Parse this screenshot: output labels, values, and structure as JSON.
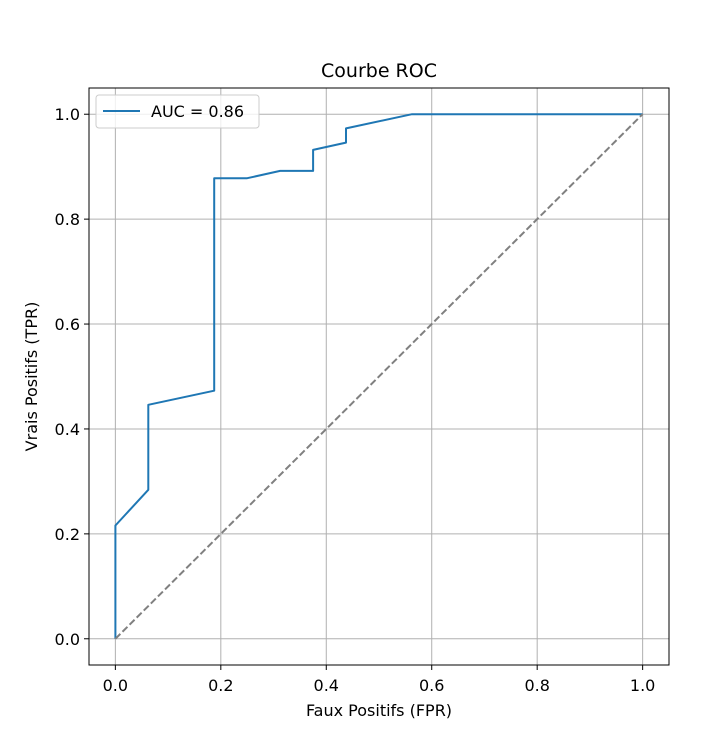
{
  "chart_data": {
    "type": "line",
    "title": "Courbe ROC",
    "xlabel": "Faux Positifs (FPR)",
    "ylabel": "Vrais Positifs (TPR)",
    "xlim": [
      -0.05,
      1.05
    ],
    "ylim": [
      -0.05,
      1.05
    ],
    "xticks": [
      0.0,
      0.2,
      0.4,
      0.6,
      0.8,
      1.0
    ],
    "yticks": [
      0.0,
      0.2,
      0.4,
      0.6,
      0.8,
      1.0
    ],
    "xtick_labels": [
      "0.0",
      "0.2",
      "0.4",
      "0.6",
      "0.8",
      "1.0"
    ],
    "ytick_labels": [
      "0.0",
      "0.2",
      "0.4",
      "0.6",
      "0.8",
      "1.0"
    ],
    "grid": true,
    "legend_position": "top-left",
    "series": [
      {
        "name": "AUC = 0.86",
        "color": "#1f77b4",
        "style": "solid",
        "x": [
          0.0,
          0.0,
          0.0625,
          0.0625,
          0.1875,
          0.1875,
          0.25,
          0.3125,
          0.375,
          0.375,
          0.4375,
          0.4375,
          0.5625,
          1.0
        ],
        "y": [
          0.0,
          0.216,
          0.284,
          0.446,
          0.473,
          0.878,
          0.878,
          0.892,
          0.892,
          0.932,
          0.946,
          0.973,
          1.0,
          1.0
        ]
      },
      {
        "color": "#808080",
        "style": "dashed",
        "x": [
          0.0,
          1.0
        ],
        "y": [
          0.0,
          1.0
        ]
      }
    ]
  }
}
